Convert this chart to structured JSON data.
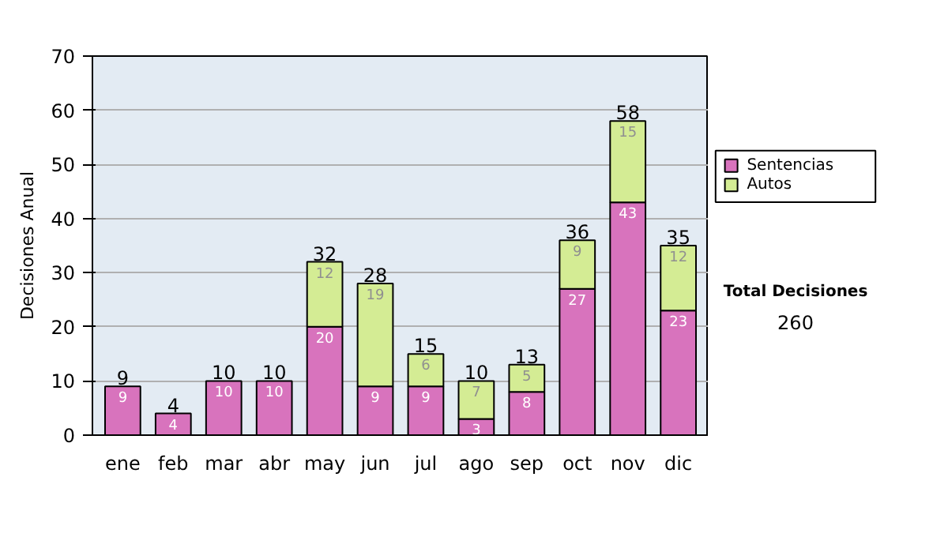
{
  "chart_data": {
    "type": "bar",
    "stacked": true,
    "ylabel": "Decisiones Anual",
    "categories": [
      "ene",
      "feb",
      "mar",
      "abr",
      "may",
      "jun",
      "jul",
      "ago",
      "sep",
      "oct",
      "nov",
      "dic"
    ],
    "series": [
      {
        "name": "Sentencias",
        "color": "#d873bd",
        "values": [
          9,
          4,
          10,
          10,
          20,
          9,
          9,
          3,
          8,
          27,
          43,
          23
        ]
      },
      {
        "name": "Autos",
        "color": "#d4ec94",
        "values": [
          null,
          null,
          null,
          null,
          12,
          19,
          6,
          7,
          5,
          9,
          15,
          12
        ]
      }
    ],
    "totals": [
      "9",
      "4",
      "10",
      "10",
      "32",
      "28",
      "15",
      "10",
      "13",
      "36",
      "58",
      "35"
    ],
    "data_labels": true,
    "ylim": [
      0,
      70
    ],
    "yticks": [
      0,
      10,
      20,
      30,
      40,
      50,
      60,
      70
    ],
    "grid": "y",
    "legend": "right",
    "annotations": [
      "Total Decisiones",
      "260"
    ]
  }
}
